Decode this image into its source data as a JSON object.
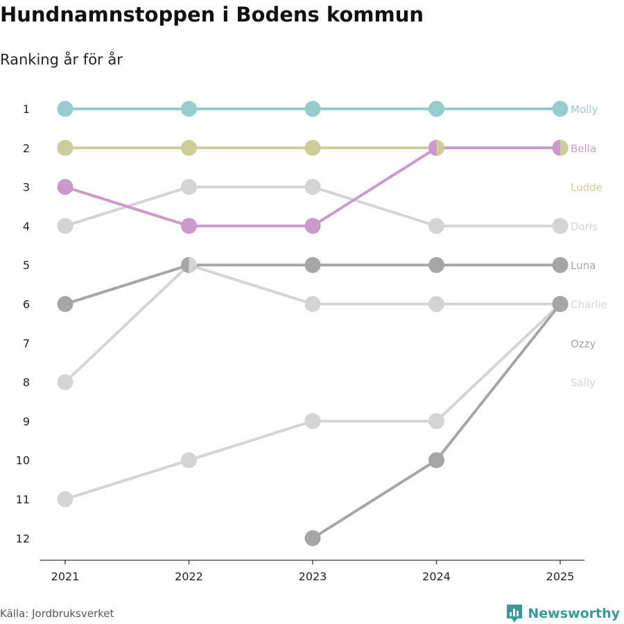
{
  "header": {
    "title": "Hundnamnstoppen i Bodens kommun",
    "subtitle": "Ranking år för år"
  },
  "footer": {
    "source": "Källa: Jordbruksverket",
    "brand": "Newsworthy",
    "brand_icon": "bar-chart-pin-icon"
  },
  "colors": {
    "Molly": "#96cccb",
    "Ludde": "#cdcd99",
    "Bella": "#cc99cc",
    "Doris": "#d4d4d4",
    "Luna": "#a6a6a6",
    "Charlie": "#d4d4d4",
    "Ozzy": "#a6a6a6",
    "Sally": "#d4d4d4",
    "Charlie_end_dot": "#6b6b72",
    "axis": "#333333",
    "brand": "#3a9a95"
  },
  "chart_data": {
    "type": "line",
    "chart_kind": "bump",
    "x": [
      "2021",
      "2022",
      "2023",
      "2024",
      "2025"
    ],
    "y_ticks": [
      "1",
      "2",
      "3",
      "4",
      "5",
      "6",
      "7",
      "8",
      "9",
      "10",
      "11",
      "12"
    ],
    "y_range": [
      1,
      12
    ],
    "y_inverted": true,
    "grid": false,
    "series": [
      {
        "name": "Molly",
        "values": [
          1,
          1,
          1,
          1,
          1
        ]
      },
      {
        "name": "Ludde",
        "values": [
          2,
          2,
          2,
          2,
          2
        ]
      },
      {
        "name": "Bella",
        "values": [
          3,
          4,
          4,
          2,
          2
        ]
      },
      {
        "name": "Doris",
        "values": [
          4,
          3,
          3,
          4,
          4
        ]
      },
      {
        "name": "Luna",
        "values": [
          6,
          5,
          5,
          5,
          5
        ]
      },
      {
        "name": "Charlie",
        "values": [
          8,
          5,
          6,
          6,
          6
        ]
      },
      {
        "name": "Ozzy",
        "values": [
          null,
          null,
          12,
          10,
          6
        ]
      },
      {
        "name": "Sally",
        "values": [
          11,
          10,
          9,
          9,
          6
        ]
      }
    ],
    "end_labels": [
      "Molly",
      "Bella",
      "Ludde",
      "Doris",
      "Luna",
      "Charlie",
      "Ozzy",
      "Sally"
    ]
  }
}
